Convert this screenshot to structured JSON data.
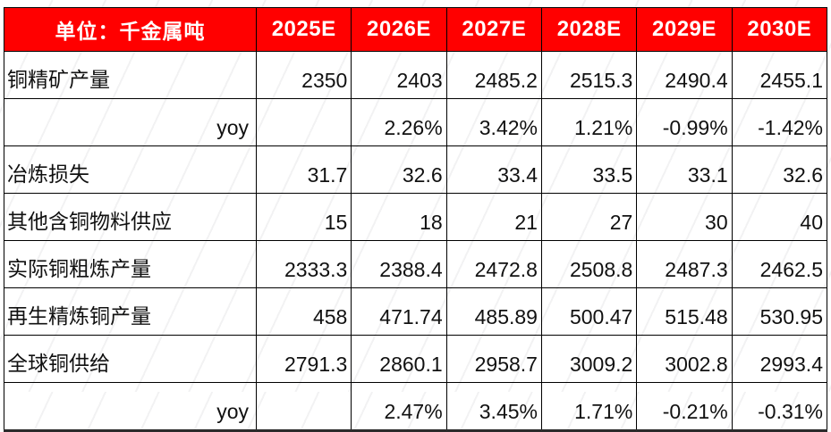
{
  "colors": {
    "header_bg": "#ff0000",
    "header_text": "#ffffff",
    "body_text": "#111111",
    "border": "#000000"
  },
  "chart_data": {
    "type": "table",
    "title": "",
    "unit_label": "单位：千金属吨",
    "columns": [
      "2025E",
      "2026E",
      "2027E",
      "2028E",
      "2029E",
      "2030E"
    ],
    "rows": [
      {
        "label": "铜精矿产量",
        "align": "left",
        "values": [
          "2350",
          "2403",
          "2485.2",
          "2515.3",
          "2490.4",
          "2455.1"
        ]
      },
      {
        "label": "yoy",
        "align": "right",
        "values": [
          "",
          "2.26%",
          "3.42%",
          "1.21%",
          "-0.99%",
          "-1.42%"
        ]
      },
      {
        "label": "冶炼损失",
        "align": "left",
        "values": [
          "31.7",
          "32.6",
          "33.4",
          "33.5",
          "33.1",
          "32.6"
        ]
      },
      {
        "label": "其他含铜物料供应",
        "align": "left",
        "values": [
          "15",
          "18",
          "21",
          "27",
          "30",
          "40"
        ]
      },
      {
        "label": "实际铜粗炼产量",
        "align": "left",
        "values": [
          "2333.3",
          "2388.4",
          "2472.8",
          "2508.8",
          "2487.3",
          "2462.5"
        ]
      },
      {
        "label": "再生精炼铜产量",
        "align": "left",
        "values": [
          "458",
          "471.74",
          "485.89",
          "500.47",
          "515.48",
          "530.95"
        ]
      },
      {
        "label": "全球铜供给",
        "align": "left",
        "values": [
          "2791.3",
          "2860.1",
          "2958.7",
          "3009.2",
          "3002.8",
          "2993.4"
        ]
      },
      {
        "label": "yoy",
        "align": "right",
        "values": [
          "",
          "2.47%",
          "3.45%",
          "1.71%",
          "-0.21%",
          "-0.31%"
        ]
      }
    ]
  }
}
